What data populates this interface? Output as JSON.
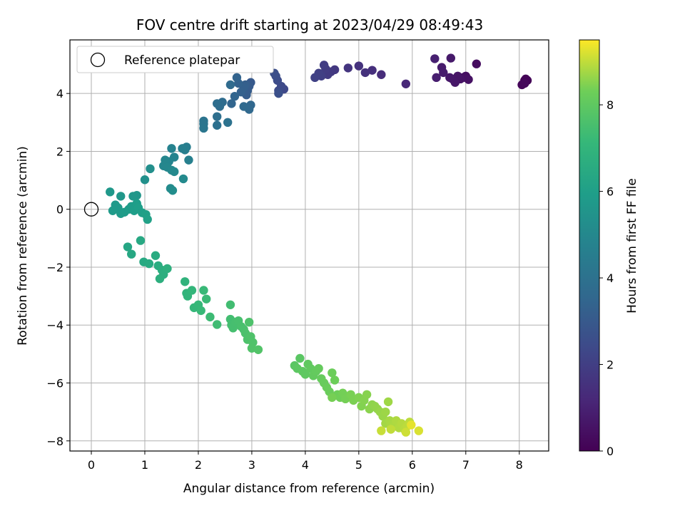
{
  "chart_data": {
    "type": "scatter",
    "title": "FOV centre drift starting at 2023/04/29 08:49:43",
    "xlabel": "Angular distance from reference (arcmin)",
    "ylabel": "Rotation from reference (arcmin)",
    "xlim": [
      -0.4,
      8.55
    ],
    "ylim": [
      -8.35,
      5.85
    ],
    "xticks": [
      0,
      1,
      2,
      3,
      4,
      5,
      6,
      7,
      8
    ],
    "yticks": [
      -8,
      -6,
      -4,
      -2,
      0,
      2,
      4
    ],
    "grid": true,
    "legend": {
      "position": "top-left",
      "entries": [
        "Reference platepar"
      ]
    },
    "reference_point": {
      "x": 0,
      "y": 0
    },
    "colorbar": {
      "label": "Hours from first FF file",
      "range": [
        0,
        9.5
      ],
      "ticks": [
        0,
        2,
        4,
        6,
        8
      ],
      "colormap": "viridis"
    },
    "series": [
      {
        "name": "",
        "points": [
          [
            8.1,
            4.45,
            0.0
          ],
          [
            8.12,
            4.5,
            0.05
          ],
          [
            8.15,
            4.45,
            0.1
          ],
          [
            8.05,
            4.3,
            0.15
          ],
          [
            8.1,
            4.35,
            0.2
          ],
          [
            7.2,
            5.02,
            0.35
          ],
          [
            7.0,
            4.6,
            0.4
          ],
          [
            6.95,
            4.55,
            0.45
          ],
          [
            7.05,
            4.48,
            0.5
          ],
          [
            6.9,
            4.5,
            0.55
          ],
          [
            6.85,
            4.6,
            0.6
          ],
          [
            6.75,
            4.5,
            0.62
          ],
          [
            6.8,
            4.38,
            0.65
          ],
          [
            6.7,
            4.55,
            0.68
          ],
          [
            6.72,
            5.22,
            0.72
          ],
          [
            6.55,
            4.9,
            0.78
          ],
          [
            6.58,
            4.72,
            0.82
          ],
          [
            6.45,
            4.55,
            0.88
          ],
          [
            6.42,
            5.2,
            0.95
          ],
          [
            5.88,
            4.33,
            1.2
          ],
          [
            5.42,
            4.65,
            1.35
          ],
          [
            5.25,
            4.8,
            1.45
          ],
          [
            5.12,
            4.72,
            1.5
          ],
          [
            5.0,
            4.95,
            1.55
          ],
          [
            4.8,
            4.88,
            1.65
          ],
          [
            4.55,
            4.82,
            1.75
          ],
          [
            4.48,
            4.75,
            1.8
          ],
          [
            4.42,
            4.65,
            1.85
          ],
          [
            4.38,
            4.85,
            1.9
          ],
          [
            4.35,
            4.98,
            1.95
          ],
          [
            4.3,
            4.6,
            2.0
          ],
          [
            4.25,
            4.7,
            2.05
          ],
          [
            4.18,
            4.55,
            2.1
          ],
          [
            3.6,
            4.15,
            2.35
          ],
          [
            3.55,
            4.25,
            2.4
          ],
          [
            3.5,
            4.1,
            2.45
          ],
          [
            3.48,
            4.45,
            2.5
          ],
          [
            3.45,
            4.6,
            2.55
          ],
          [
            3.42,
            4.7,
            2.6
          ],
          [
            3.5,
            4.0,
            2.65
          ],
          [
            2.98,
            4.38,
            3.0
          ],
          [
            2.95,
            4.25,
            3.05
          ],
          [
            2.92,
            4.1,
            3.1
          ],
          [
            2.9,
            3.95,
            3.15
          ],
          [
            2.88,
            4.3,
            3.2
          ],
          [
            2.85,
            4.2,
            3.25
          ],
          [
            2.8,
            4.05,
            3.3
          ],
          [
            2.75,
            4.35,
            3.35
          ],
          [
            2.72,
            4.55,
            3.4
          ],
          [
            2.68,
            3.9,
            3.45
          ],
          [
            2.62,
            3.65,
            3.5
          ],
          [
            2.98,
            3.6,
            3.55
          ],
          [
            2.95,
            3.45,
            3.6
          ],
          [
            2.85,
            3.55,
            3.65
          ],
          [
            2.6,
            4.3,
            3.7
          ],
          [
            2.45,
            3.7,
            3.75
          ],
          [
            2.4,
            3.55,
            3.8
          ],
          [
            2.35,
            3.65,
            3.85
          ],
          [
            2.35,
            3.2,
            3.9
          ],
          [
            2.35,
            2.9,
            3.95
          ],
          [
            2.55,
            3.0,
            4.0
          ],
          [
            2.1,
            3.05,
            4.1
          ],
          [
            2.1,
            2.95,
            4.15
          ],
          [
            2.1,
            2.8,
            4.2
          ],
          [
            1.78,
            2.15,
            4.5
          ],
          [
            1.75,
            2.05,
            4.55
          ],
          [
            1.7,
            2.1,
            4.6
          ],
          [
            1.82,
            1.7,
            4.65
          ],
          [
            1.5,
            2.1,
            4.75
          ],
          [
            1.55,
            1.8,
            4.8
          ],
          [
            1.45,
            1.65,
            4.85
          ],
          [
            1.38,
            1.7,
            4.9
          ],
          [
            1.35,
            1.5,
            4.92
          ],
          [
            1.42,
            1.45,
            4.95
          ],
          [
            1.5,
            1.35,
            5.0
          ],
          [
            1.55,
            1.3,
            5.05
          ],
          [
            1.72,
            1.05,
            5.1
          ],
          [
            1.48,
            0.72,
            5.15
          ],
          [
            1.52,
            0.65,
            5.2
          ],
          [
            1.1,
            1.4,
            5.3
          ],
          [
            1.0,
            1.02,
            5.35
          ],
          [
            0.85,
            0.48,
            5.6
          ],
          [
            0.78,
            0.45,
            5.62
          ],
          [
            0.55,
            0.45,
            5.65
          ],
          [
            0.35,
            0.6,
            5.7
          ],
          [
            0.45,
            0.15,
            5.75
          ],
          [
            0.5,
            0.05,
            5.78
          ],
          [
            0.4,
            -0.05,
            5.8
          ],
          [
            0.55,
            -0.15,
            5.82
          ],
          [
            0.62,
            -0.1,
            5.85
          ],
          [
            0.7,
            0.0,
            5.88
          ],
          [
            0.75,
            0.1,
            5.9
          ],
          [
            0.8,
            -0.05,
            5.92
          ],
          [
            0.85,
            0.2,
            5.95
          ],
          [
            0.88,
            0.05,
            5.97
          ],
          [
            0.95,
            -0.12,
            6.0
          ],
          [
            1.02,
            -0.18,
            6.05
          ],
          [
            1.05,
            -0.35,
            6.1
          ],
          [
            0.68,
            -1.3,
            6.3
          ],
          [
            0.75,
            -1.55,
            6.35
          ],
          [
            0.92,
            -1.08,
            6.4
          ],
          [
            0.98,
            -1.82,
            6.45
          ],
          [
            1.08,
            -1.88,
            6.5
          ],
          [
            1.2,
            -1.6,
            6.55
          ],
          [
            1.25,
            -1.95,
            6.6
          ],
          [
            1.32,
            -2.1,
            6.65
          ],
          [
            1.35,
            -2.25,
            6.7
          ],
          [
            1.28,
            -2.4,
            6.72
          ],
          [
            1.42,
            -2.05,
            6.75
          ],
          [
            1.75,
            -2.5,
            6.9
          ],
          [
            1.78,
            -2.9,
            6.95
          ],
          [
            1.8,
            -3.0,
            7.0
          ],
          [
            1.88,
            -2.8,
            7.05
          ],
          [
            1.92,
            -3.4,
            7.1
          ],
          [
            2.0,
            -3.3,
            7.15
          ],
          [
            2.05,
            -3.5,
            7.18
          ],
          [
            2.1,
            -2.8,
            7.2
          ],
          [
            2.15,
            -3.1,
            7.25
          ],
          [
            2.22,
            -3.72,
            7.3
          ],
          [
            2.35,
            -3.98,
            7.35
          ],
          [
            2.6,
            -3.3,
            7.4
          ],
          [
            2.6,
            -3.8,
            7.42
          ],
          [
            2.62,
            -4.0,
            7.45
          ],
          [
            2.65,
            -4.1,
            7.48
          ],
          [
            2.7,
            -3.9,
            7.5
          ],
          [
            2.75,
            -3.85,
            7.52
          ],
          [
            2.8,
            -4.05,
            7.55
          ],
          [
            2.85,
            -4.15,
            7.57
          ],
          [
            2.88,
            -4.28,
            7.6
          ],
          [
            2.92,
            -4.5,
            7.62
          ],
          [
            2.95,
            -3.9,
            7.64
          ],
          [
            2.98,
            -4.4,
            7.66
          ],
          [
            3.02,
            -4.6,
            7.68
          ],
          [
            3.0,
            -4.8,
            7.7
          ],
          [
            3.12,
            -4.85,
            7.72
          ],
          [
            3.9,
            -5.15,
            7.9
          ],
          [
            3.8,
            -5.4,
            7.92
          ],
          [
            3.85,
            -5.5,
            7.95
          ],
          [
            3.95,
            -5.6,
            7.98
          ],
          [
            4.0,
            -5.7,
            8.0
          ],
          [
            4.05,
            -5.35,
            8.02
          ],
          [
            4.1,
            -5.5,
            8.05
          ],
          [
            4.15,
            -5.75,
            8.08
          ],
          [
            4.2,
            -5.6,
            8.1
          ],
          [
            4.25,
            -5.5,
            8.12
          ],
          [
            4.3,
            -5.85,
            8.15
          ],
          [
            4.35,
            -6.0,
            8.18
          ],
          [
            4.4,
            -6.15,
            8.2
          ],
          [
            4.45,
            -6.3,
            8.22
          ],
          [
            4.5,
            -5.65,
            8.25
          ],
          [
            4.55,
            -5.9,
            8.27
          ],
          [
            4.6,
            -6.4,
            8.3
          ],
          [
            4.65,
            -6.5,
            8.32
          ],
          [
            4.7,
            -6.35,
            8.35
          ],
          [
            4.75,
            -6.55,
            8.37
          ],
          [
            4.5,
            -6.5,
            8.38
          ],
          [
            4.85,
            -6.4,
            8.4
          ],
          [
            4.9,
            -6.6,
            8.42
          ],
          [
            5.0,
            -6.5,
            8.45
          ],
          [
            5.05,
            -6.8,
            8.48
          ],
          [
            5.1,
            -6.6,
            8.5
          ],
          [
            5.15,
            -6.4,
            8.52
          ],
          [
            5.2,
            -6.9,
            8.55
          ],
          [
            5.25,
            -6.75,
            8.58
          ],
          [
            5.3,
            -6.8,
            8.6
          ],
          [
            5.35,
            -6.9,
            8.62
          ],
          [
            5.4,
            -7.0,
            8.65
          ],
          [
            5.45,
            -7.15,
            8.68
          ],
          [
            5.5,
            -7.0,
            8.7
          ],
          [
            5.55,
            -6.65,
            8.72
          ],
          [
            5.5,
            -7.4,
            8.75
          ],
          [
            5.58,
            -7.3,
            8.78
          ],
          [
            5.6,
            -7.45,
            8.8
          ],
          [
            5.65,
            -7.5,
            8.82
          ],
          [
            5.7,
            -7.3,
            8.85
          ],
          [
            5.75,
            -7.55,
            8.88
          ],
          [
            5.8,
            -7.4,
            8.9
          ],
          [
            5.85,
            -7.6,
            8.92
          ],
          [
            5.9,
            -7.5,
            8.95
          ],
          [
            5.95,
            -7.35,
            8.97
          ],
          [
            5.6,
            -7.6,
            9.0
          ],
          [
            5.42,
            -7.65,
            9.05
          ],
          [
            5.88,
            -7.7,
            9.1
          ],
          [
            6.12,
            -7.65,
            9.2
          ],
          [
            5.98,
            -7.45,
            9.3
          ]
        ]
      }
    ]
  }
}
